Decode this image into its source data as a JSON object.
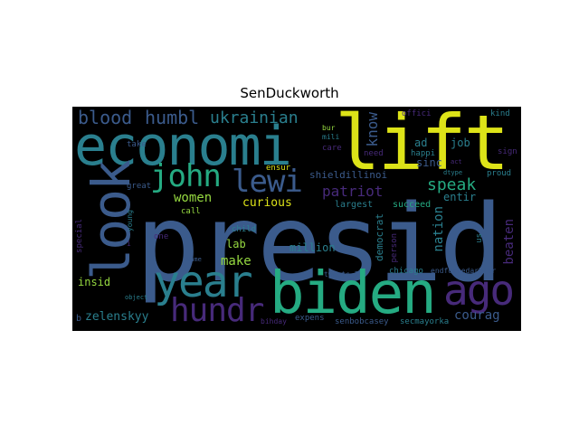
{
  "title": "SenDuckworth",
  "words": {
    "presid": "presid",
    "lift": "lift",
    "economi": "economi",
    "biden": "biden",
    "look": "look",
    "year": "year",
    "ago": "ago",
    "john": "john",
    "lewi": "lewi",
    "hundr": "hundr",
    "blood": "blood",
    "humbl": "humbl",
    "ukrainian": "ukrainian",
    "patriot": "patriot",
    "speak": "speak",
    "know": "know",
    "women": "women",
    "make": "make",
    "curious": "curious",
    "zelenskyy": "zelenskyy",
    "courag": "courag",
    "nation": "nation",
    "beaten": "beaten",
    "million": "million",
    "shieldillinoi": "shieldillinoi",
    "democrat": "democrat",
    "entir": "entir",
    "insid": "insid",
    "lab": "lab",
    "sinc": "sinc",
    "job": "job",
    "ad": "ad",
    "offici": "offici",
    "kind": "kind",
    "need": "need",
    "happi": "happi",
    "care": "care",
    "bur": "bur",
    "mili": "mili",
    "ensur": "ensur",
    "great": "great",
    "take": "take",
    "call": "call",
    "child": "child",
    "largest": "largest",
    "succeed": "succeed",
    "person": "person",
    "proud": "proud",
    "sign": "sign",
    "us": "us",
    "chicago": "chicago",
    "endforcedarbitr": "endforcedarbitr",
    "tweets_2": "tweets_2",
    "expens": "expens",
    "senbobcasey": "senbobcasey",
    "secmayorka": "secmayorka",
    "bihday": "bihday",
    "object": "object",
    "name": "Name",
    "one": "one",
    "young": "young",
    "special": "special",
    "b": "b",
    "i": "i",
    "dtype": "dtype",
    "act": "act"
  },
  "colors": {
    "background": "#000000",
    "yellow": "#dde318",
    "blue": "#3b5b8c",
    "teal": "#2a7f8e",
    "green": "#25ab82",
    "purple": "#472a7a",
    "lime": "#95d840"
  }
}
